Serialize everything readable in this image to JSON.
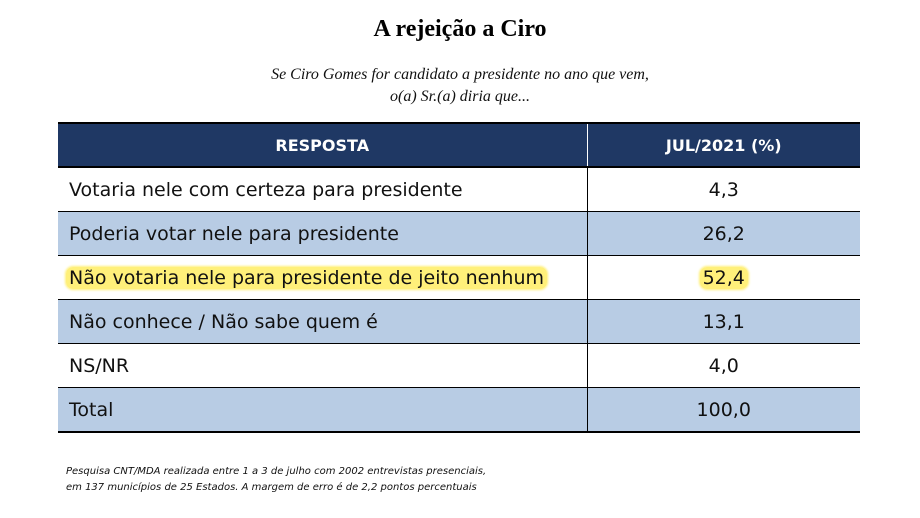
{
  "title": "A rejeição a Ciro",
  "subtitle": {
    "line1": "Se Ciro Gomes for candidato a presidente no ano que vem,",
    "line2": "o(a) Sr.(a) diria que..."
  },
  "table": {
    "headers": [
      "RESPOSTA",
      "JUL/2021 (%)"
    ],
    "rows": [
      {
        "label": "Votaria nele com certeza para presidente",
        "value": "4,3"
      },
      {
        "label": "Poderia votar nele para presidente",
        "value": "26,2"
      },
      {
        "label": "Não votaria nele para presidente de jeito nenhum",
        "value": "52,4",
        "highlighted": true
      },
      {
        "label": "Não conhece / Não sabe quem é",
        "value": "13,1"
      },
      {
        "label": "NS/NR",
        "value": "4,0"
      },
      {
        "label": "Total",
        "value": "100,0"
      }
    ]
  },
  "footnote": {
    "line1": "Pesquisa CNT/MDA realizada entre 1 a 3 de julho com 2002 entrevistas presenciais,",
    "line2": "em 137 municípios de 25 Estados. A margem de erro é de 2,2 pontos percentuais"
  },
  "colors": {
    "header_bg": "#1f3864",
    "row_shade": "#b8cce4",
    "highlight": "#fff07a"
  }
}
